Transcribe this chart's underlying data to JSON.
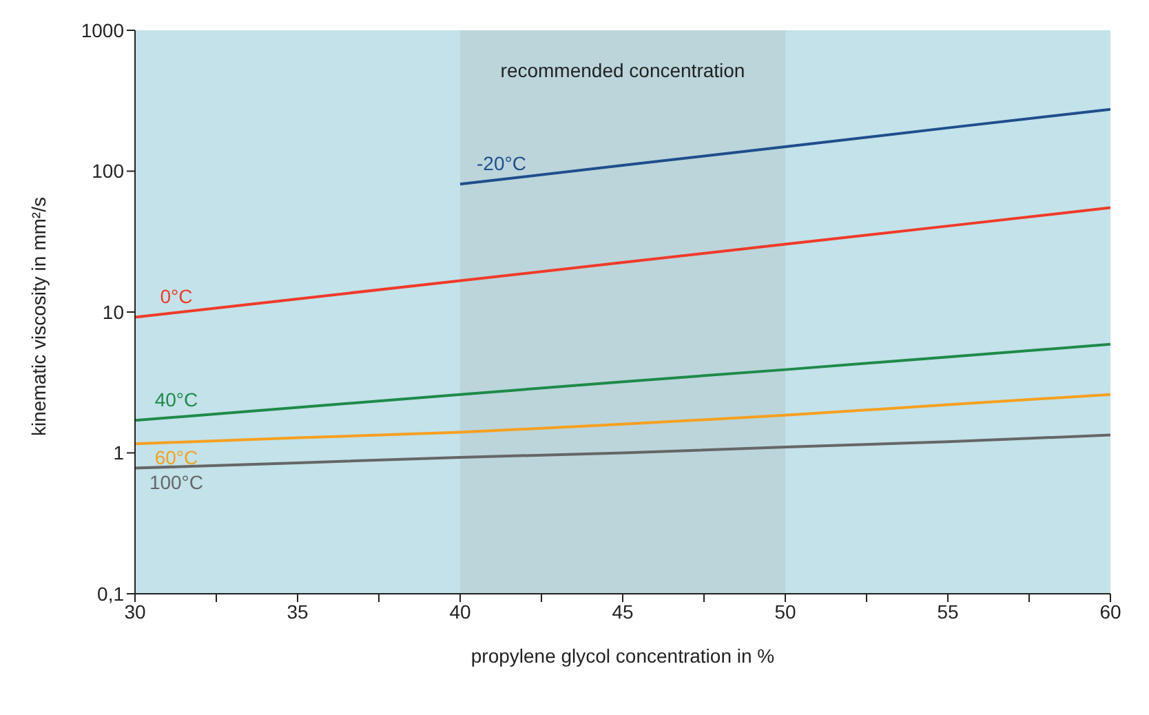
{
  "chart_data": {
    "type": "line",
    "xlabel": "propylene glycol concentration in %",
    "ylabel": "kinematic viscosity in mm²/s",
    "x": [
      30,
      35,
      40,
      45,
      50,
      55,
      60
    ],
    "series": [
      {
        "name": "-20°C",
        "color": "#1f4e8c",
        "x": [
          40,
          45,
          50,
          55,
          60
        ],
        "values": [
          81,
          110,
          149,
          203,
          275
        ]
      },
      {
        "name": "0°C",
        "color": "#f03a2a",
        "values": [
          9.2,
          12.4,
          16.7,
          22.5,
          30.3,
          40.8,
          55
        ]
      },
      {
        "name": "40°C",
        "color": "#1f8a4a",
        "values": [
          1.7,
          2.1,
          2.6,
          3.2,
          3.9,
          4.8,
          5.9
        ]
      },
      {
        "name": "60°C",
        "color": "#f5a020",
        "values": [
          1.16,
          1.28,
          1.4,
          1.6,
          1.85,
          2.2,
          2.6
        ]
      },
      {
        "name": "100°C",
        "color": "#666666",
        "values": [
          0.78,
          0.85,
          0.93,
          1.0,
          1.1,
          1.2,
          1.34
        ]
      }
    ],
    "log": "y",
    "xlim": [
      30,
      60
    ],
    "ylim": [
      0.1,
      1000
    ],
    "xticks": [
      30,
      {
        "value": 32.5,
        "label": null
      },
      35,
      {
        "value": 37.5,
        "label": null
      },
      40,
      {
        "value": 42.5,
        "label": null
      },
      45,
      {
        "value": 47.5,
        "label": null
      },
      50,
      {
        "value": 52.5,
        "label": null
      },
      55,
      {
        "value": 57.5,
        "label": null
      },
      60
    ],
    "yticks": [
      {
        "value": 0.1,
        "label": "0,1"
      },
      1,
      10,
      100,
      1000
    ],
    "bands": [
      {
        "axis": "x",
        "from": 40,
        "to": 50,
        "label": "recommended concentration",
        "color": "#8a8f90"
      }
    ],
    "grid": false,
    "legend": false,
    "marker": "none",
    "line_style": "solid"
  }
}
